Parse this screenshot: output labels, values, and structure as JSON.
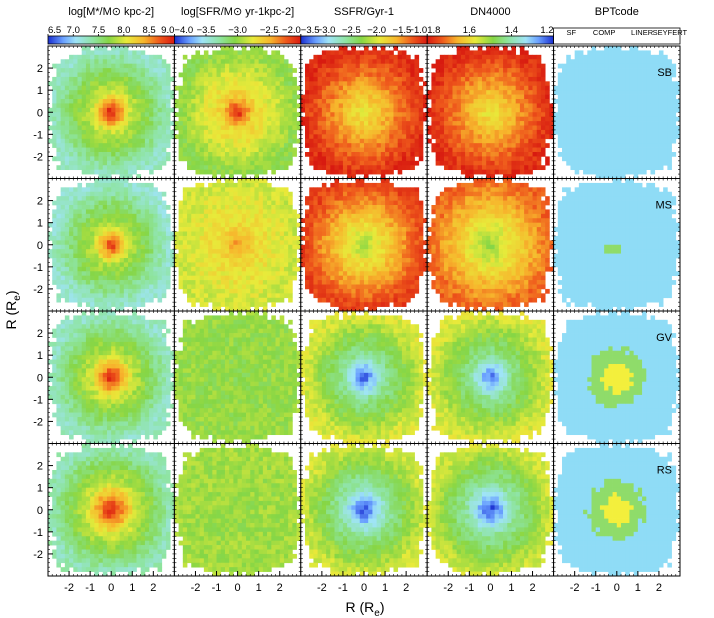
{
  "figure": {
    "xlabel": "R (R",
    "xlabel_sub": "e",
    "xlabel_close": ")",
    "ylabel": "R (R",
    "ylabel_sub": "e",
    "ylabel_close": ")"
  },
  "chart_data": {
    "type": "heatmap",
    "panel_grid": {
      "rows": 4,
      "cols": 5
    },
    "axis_range": [
      -3,
      3
    ],
    "x_ticks": [
      -2,
      -1,
      0,
      1,
      2
    ],
    "y_ticks": [
      -2,
      -1,
      0,
      1,
      2
    ],
    "tick_labels": [
      "-2",
      "-1",
      "0",
      "1",
      "2"
    ],
    "rows": [
      {
        "label": "SB"
      },
      {
        "label": "MS"
      },
      {
        "label": "GV"
      },
      {
        "label": "RS"
      }
    ],
    "columns": [
      {
        "title_html": "log[M<tspan font-size='8' dy='2'>*</tspan><tspan dy='-2'>/M</tspan><tspan font-size='8' dy='2'>⊙</tspan><tspan dy='-2'> kpc</tspan><tspan font-size='8' dy='-4'>-2</tspan><tspan dy='4'>]</tspan>",
        "title": "log[M*/M⊙ kpc-2]",
        "colorbar": {
          "min": 6.5,
          "max": 9.0,
          "reversed": false,
          "labels": [
            "6.5",
            "7.0",
            "7.5",
            "8.0",
            "8.5",
            "9.0"
          ],
          "label_values": [
            6.5,
            7.0,
            7.5,
            8.0,
            8.5,
            9.0
          ]
        }
      },
      {
        "title": "log[SFR/M⊙ yr-1kpc-2]",
        "colorbar": {
          "min": -4.0,
          "max": -2.0,
          "reversed": false,
          "labels": [
            "−4.0",
            "−3.5",
            "−3.0",
            "−2.5",
            "−2.0"
          ],
          "label_values": [
            -4.0,
            -3.5,
            -3.0,
            -2.5,
            -2.0
          ]
        }
      },
      {
        "title": "SSFR/Gyr-1",
        "colorbar": {
          "min": -3.5,
          "max": -1.0,
          "reversed": false,
          "labels": [
            "−3.5",
            "−3.0",
            "−2.5",
            "−2.0",
            "−1.5",
            "−1.0"
          ],
          "label_values": [
            -3.5,
            -3.0,
            -2.5,
            -2.0,
            -1.5,
            -1.0
          ]
        }
      },
      {
        "title": "DN4000",
        "colorbar": {
          "min": 1.2,
          "max": 1.8,
          "reversed": true,
          "labels": [
            "1.8",
            "1.6",
            "1.4",
            "1.2"
          ],
          "label_values": [
            1.8,
            1.6,
            1.4,
            1.2
          ]
        }
      },
      {
        "title": "BPTcode",
        "colorbar": {
          "categorical": true,
          "labels": [
            "SF",
            "COMP",
            "LINER",
            "SEYFERT"
          ],
          "colors": [
            "#8fdcf6",
            "#8fdc6a",
            "#f3ef3c",
            "#f07a22"
          ]
        }
      }
    ],
    "maps": [
      [
        {
          "kind": "radial",
          "center": 1.0,
          "edge": 0.3,
          "frac": 0.32
        },
        {
          "kind": "radial",
          "center": 1.0,
          "edge": 0.48,
          "frac": 0.26
        },
        {
          "kind": "radial",
          "center": 0.62,
          "edge": 0.96,
          "frac": 0.55
        },
        {
          "kind": "radial",
          "center": 0.62,
          "edge": 0.96,
          "frac": 0.55
        },
        {
          "kind": "category",
          "value": 0
        }
      ],
      [
        {
          "kind": "radial",
          "center": 0.97,
          "edge": 0.28,
          "frac": 0.3
        },
        {
          "kind": "radial",
          "center": 0.8,
          "edge": 0.58,
          "frac": 0.3
        },
        {
          "kind": "radial",
          "center": 0.52,
          "edge": 0.92,
          "frac": 0.55
        },
        {
          "kind": "radial",
          "center": 0.5,
          "edge": 0.86,
          "frac": 0.55
        },
        {
          "kind": "category",
          "value": 0
        }
      ],
      [
        {
          "kind": "radial",
          "center": 1.0,
          "edge": 0.3,
          "frac": 0.34
        },
        {
          "kind": "radial",
          "center": 0.48,
          "edge": 0.5,
          "frac": 0.3
        },
        {
          "kind": "radial",
          "center": 0.04,
          "edge": 0.6,
          "frac": 0.36
        },
        {
          "kind": "radial",
          "center": 0.06,
          "edge": 0.6,
          "frac": 0.36
        },
        {
          "kind": "category",
          "value": 2
        }
      ],
      [
        {
          "kind": "radial",
          "center": 1.0,
          "edge": 0.32,
          "frac": 0.4
        },
        {
          "kind": "radial",
          "center": 0.5,
          "edge": 0.52,
          "frac": 0.3
        },
        {
          "kind": "radial",
          "center": 0.0,
          "edge": 0.58,
          "frac": 0.38
        },
        {
          "kind": "radial",
          "center": 0.0,
          "edge": 0.58,
          "frac": 0.38
        },
        {
          "kind": "category",
          "value": 2
        }
      ]
    ]
  }
}
